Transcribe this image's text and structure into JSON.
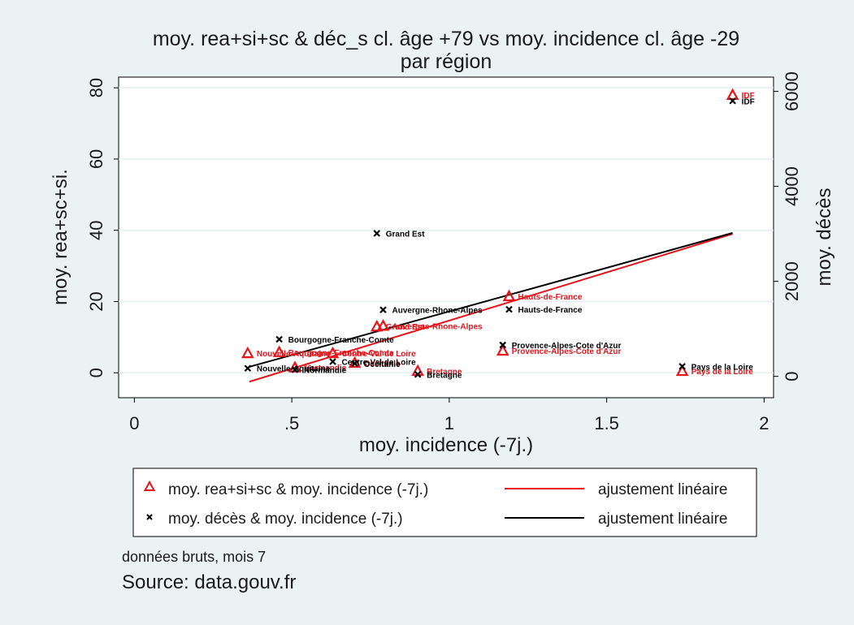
{
  "chart_data": {
    "type": "scatter",
    "title": "moy. rea+si+sc & déc_s cl. âge +79 vs moy. incidence cl. âge -29",
    "subtitle": "par région",
    "xlabel": "moy. incidence (-7j.)",
    "ylabel_left": "moy. rea+sc+si.",
    "ylabel_right": "moy. décès",
    "xlim": [
      -0.05,
      2.03
    ],
    "ylim_left": [
      -7,
      83
    ],
    "ylim_right": [
      -450,
      6300
    ],
    "x_ticks": [
      0,
      0.5,
      1,
      1.5,
      2
    ],
    "x_tick_labels": [
      "0",
      ".5",
      "1",
      "1.5",
      "2"
    ],
    "y_left_ticks": [
      0,
      20,
      40,
      60,
      80
    ],
    "y_left_tick_labels": [
      "0",
      "20",
      "40",
      "60",
      "80"
    ],
    "y_right_ticks": [
      0,
      2000,
      4000,
      6000
    ],
    "y_right_tick_labels": [
      "0",
      "2000",
      "4000",
      "6000"
    ],
    "grid": "horizontal",
    "colors": {
      "series_red": "#e8141a",
      "series_black": "#000000",
      "background": "#eaf2f3",
      "plot_bg": "#ffffff"
    },
    "series": [
      {
        "name": "moy. rea+si+sc & moy. incidence (-7j.)",
        "axis": "left",
        "marker": "triangle",
        "color": "#e8141a",
        "points": [
          {
            "x": 1.9,
            "y": 78.0,
            "label": "IDF"
          },
          {
            "x": 1.19,
            "y": 21.5,
            "label": "Hauts-de-France"
          },
          {
            "x": 0.77,
            "y": 13.0,
            "label": "Grand Est"
          },
          {
            "x": 0.79,
            "y": 13.2,
            "label": "Auvergne-Rhone-Alpes"
          },
          {
            "x": 1.17,
            "y": 6.2,
            "label": "Provence-Alpes-Cote d'Azur"
          },
          {
            "x": 0.36,
            "y": 5.5,
            "label": "Nouvelle-Aquitaine"
          },
          {
            "x": 0.46,
            "y": 5.8,
            "label": "Bourgogne-Franche-Comte"
          },
          {
            "x": 0.63,
            "y": 5.5,
            "label": "Centre-Val de Loire"
          },
          {
            "x": 0.7,
            "y": 2.8,
            "label": "Occitanie"
          },
          {
            "x": 0.51,
            "y": 1.5,
            "label": "Normandie"
          },
          {
            "x": 0.9,
            "y": 0.5,
            "label": "Bretagne"
          },
          {
            "x": 1.74,
            "y": 0.5,
            "label": "Pays de la Loire"
          }
        ]
      },
      {
        "name": "moy. décès & moy. incidence (-7j.)",
        "axis": "right",
        "marker": "x",
        "color": "#000000",
        "points": [
          {
            "x": 1.9,
            "y": 5800,
            "label": "IDF"
          },
          {
            "x": 0.77,
            "y": 3010,
            "label": "Grand Est"
          },
          {
            "x": 0.79,
            "y": 1400,
            "label": "Auvergne-Rhone-Alpes"
          },
          {
            "x": 1.19,
            "y": 1410,
            "label": "Hauts-de-France"
          },
          {
            "x": 0.46,
            "y": 780,
            "label": "Bourgogne-Franche-Comte"
          },
          {
            "x": 1.17,
            "y": 660,
            "label": "Provence-Alpes-Cote d'Azur"
          },
          {
            "x": 0.63,
            "y": 310,
            "label": "Centre-Val de Loire"
          },
          {
            "x": 0.7,
            "y": 270,
            "label": "Occitanie"
          },
          {
            "x": 0.36,
            "y": 170,
            "label": "Nouvelle-Aquitaine"
          },
          {
            "x": 0.51,
            "y": 140,
            "label": "Normandie"
          },
          {
            "x": 1.74,
            "y": 210,
            "label": "Pays de la Loire"
          },
          {
            "x": 0.9,
            "y": 40,
            "label": "Bretagne"
          }
        ]
      }
    ],
    "fits": [
      {
        "name": "ajustement linéaire",
        "axis": "left",
        "color": "#e8141a",
        "x": [
          0.365,
          1.9
        ],
        "y": [
          -2.5,
          39.0
        ]
      },
      {
        "name": "ajustement linéaire",
        "axis": "right",
        "color": "#000000",
        "x": [
          0.365,
          1.9
        ],
        "y": [
          200,
          3020
        ]
      }
    ],
    "legend": {
      "placement": "bottom",
      "items": [
        {
          "label": "moy. rea+si+sc & moy. incidence (-7j.)",
          "marker": "triangle",
          "color": "#e8141a"
        },
        {
          "label": "ajustement linéaire",
          "marker": "line",
          "color": "#e8141a"
        },
        {
          "label": "moy. décès & moy. incidence (-7j.)",
          "marker": "x",
          "color": "#000000"
        },
        {
          "label": "ajustement linéaire",
          "marker": "line",
          "color": "#000000"
        }
      ]
    },
    "notes": [
      "données bruts, mois 7",
      "Source: data.gouv.fr"
    ]
  }
}
